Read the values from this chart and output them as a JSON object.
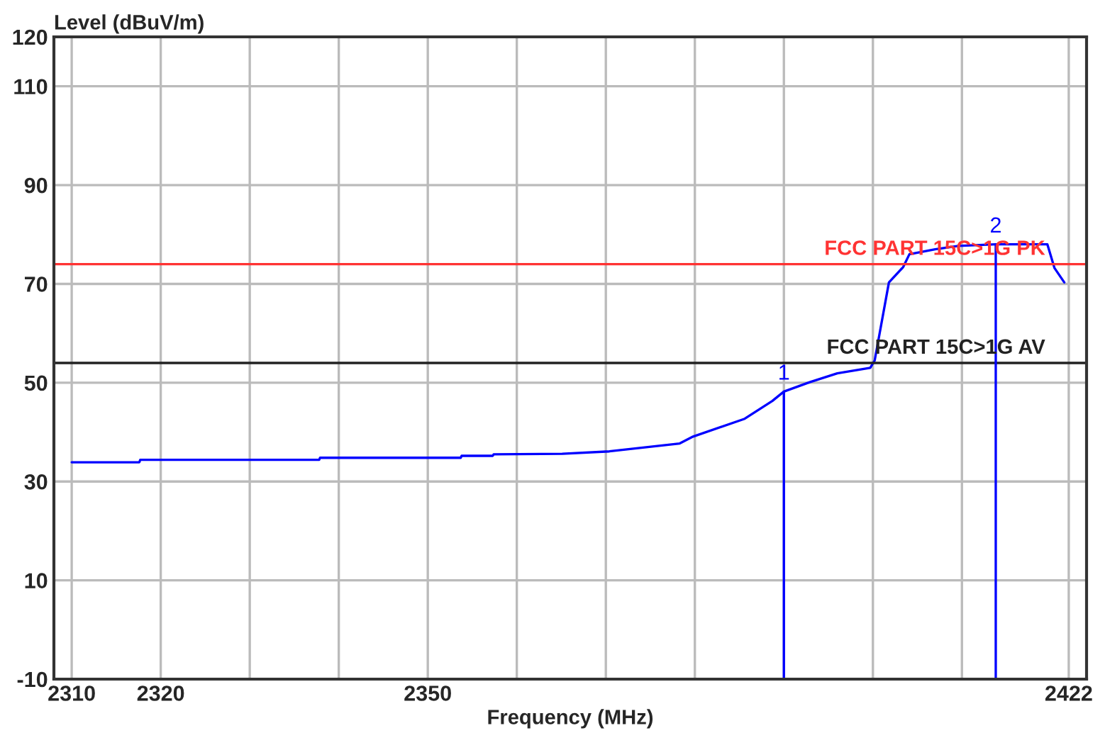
{
  "chart_data": {
    "type": "line",
    "xlabel": "Frequency (MHz)",
    "ylabel": "Level (dBuV/m)",
    "xlim": [
      2308,
      2424
    ],
    "ylim": [
      -10,
      120
    ],
    "xticks": [
      2310,
      2320,
      {
        "value": 2330,
        "label": null
      },
      {
        "value": 2340,
        "label": null
      },
      2350,
      {
        "value": 2360,
        "label": null
      },
      {
        "value": 2370,
        "label": null
      },
      {
        "value": 2380,
        "label": null
      },
      {
        "value": 2390,
        "label": null
      },
      {
        "value": 2400,
        "label": null
      },
      {
        "value": 2410,
        "label": null
      },
      2422
    ],
    "yticks": [
      -10,
      10,
      30,
      50,
      70,
      90,
      110,
      120
    ],
    "grid": true,
    "legend": false,
    "marker": "none",
    "line_style": "solid",
    "series": [
      {
        "color": "#0000ff",
        "x": [
          2310,
          2317.6,
          2317.7,
          2337.8,
          2337.9,
          2353.7,
          2353.8,
          2357.3,
          2357.4,
          2365.1,
          2370.4,
          2378.3,
          2379.8,
          2385.6,
          2388.7,
          2390,
          2392.9,
          2396,
          2399.7,
          2400.2,
          2401.8,
          2403.4,
          2404.1,
          2407,
          2409.6,
          2413.8,
          2419.6,
          2420.4,
          2421.5
        ],
        "values": [
          33.9,
          33.9,
          34.4,
          34.4,
          34.8,
          34.8,
          35.2,
          35.2,
          35.5,
          35.6,
          36.1,
          37.7,
          39.1,
          42.7,
          46.3,
          48.2,
          50.1,
          51.9,
          53.0,
          54.5,
          70.3,
          73.4,
          76.0,
          77.0,
          77.7,
          78.0,
          78.0,
          73.2,
          70.3
        ]
      }
    ],
    "ref_lines": [
      {
        "axis": "y",
        "value": 74,
        "label": "FCC PART 15C>1G PK",
        "color": "#ff3333"
      },
      {
        "axis": "y",
        "value": 54,
        "label": "FCC PART 15C>1G AV",
        "color": "#222222"
      }
    ],
    "annotations": [
      {
        "text": "1",
        "x": 2390,
        "y": 48.2
      },
      {
        "text": "2",
        "x": 2413.8,
        "y": 78.0
      }
    ]
  }
}
